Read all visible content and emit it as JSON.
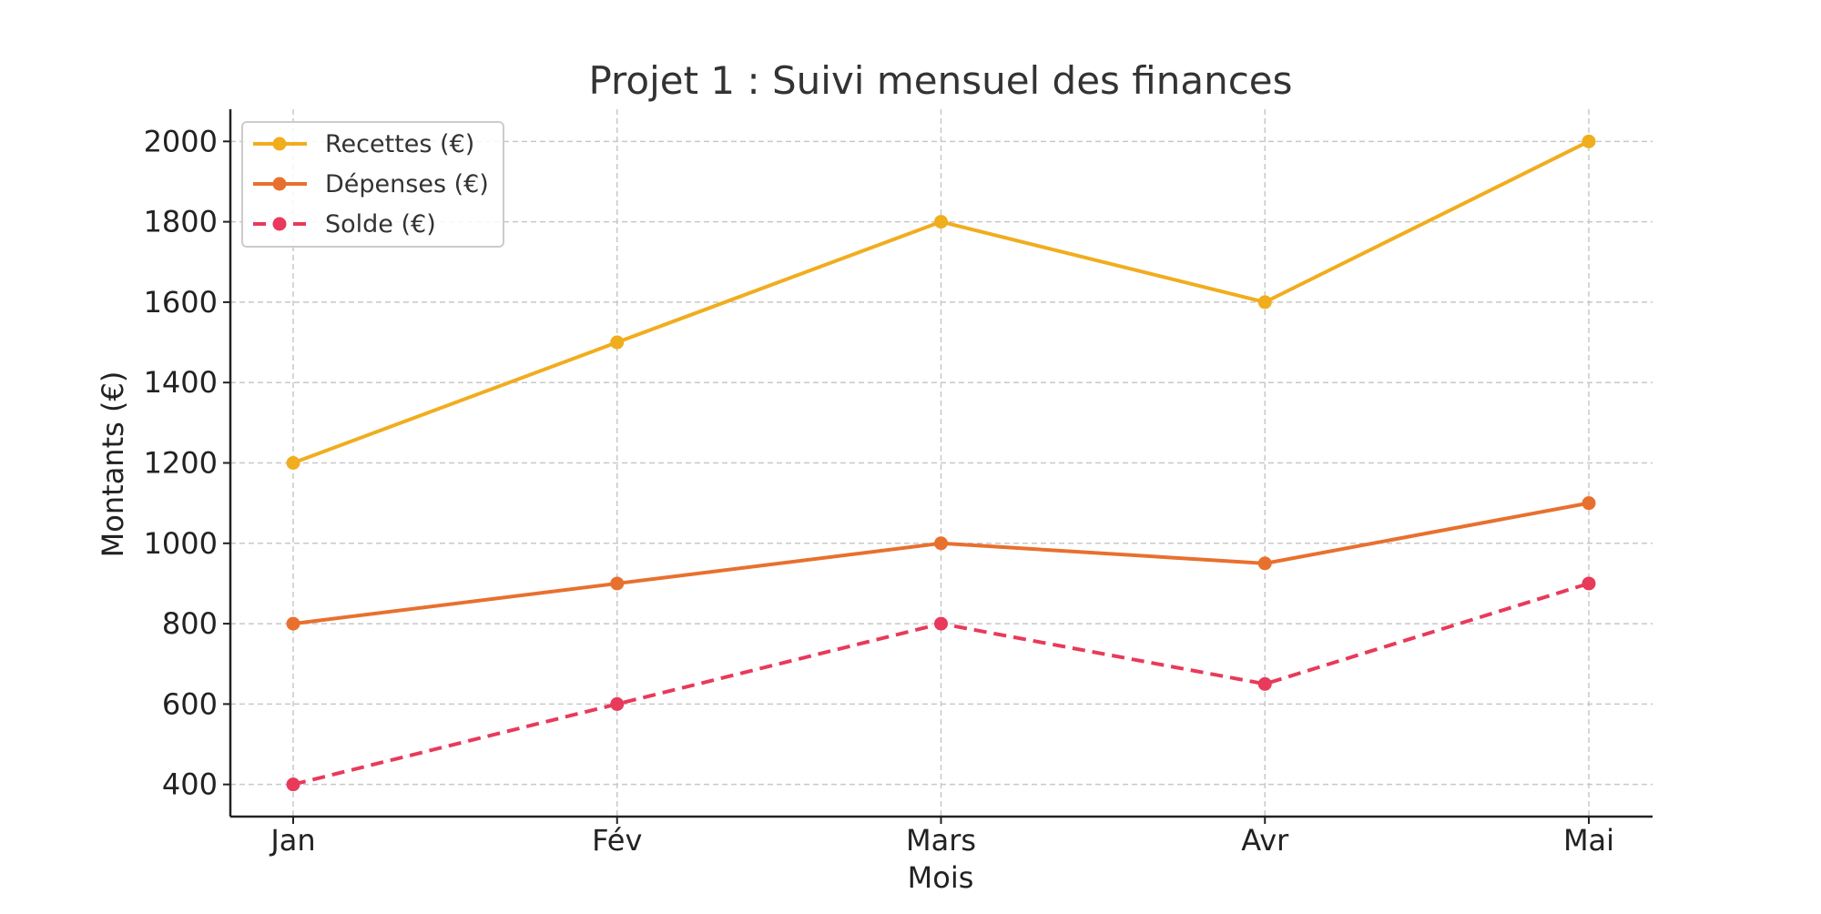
{
  "chart_data": {
    "type": "line",
    "title": "Projet 1 : Suivi mensuel des finances",
    "xlabel": "Mois",
    "ylabel": "Montants (€)",
    "categories": [
      "Jan",
      "Fév",
      "Mars",
      "Avr",
      "Mai"
    ],
    "ylim": [
      320,
      2080
    ],
    "yticks": [
      400,
      600,
      800,
      1000,
      1200,
      1400,
      1600,
      1800,
      2000
    ],
    "grid": true,
    "legend_position": "top-left",
    "series": [
      {
        "name": "Recettes (€)",
        "values": [
          1200,
          1500,
          1800,
          1600,
          2000
        ],
        "color": "#f0ad1e",
        "dashed": false
      },
      {
        "name": "Dépenses (€)",
        "values": [
          800,
          900,
          1000,
          950,
          1100
        ],
        "color": "#e8702e",
        "dashed": false
      },
      {
        "name": "Solde (€)",
        "values": [
          400,
          600,
          800,
          650,
          900
        ],
        "color": "#e83a5a",
        "dashed": true
      }
    ]
  }
}
